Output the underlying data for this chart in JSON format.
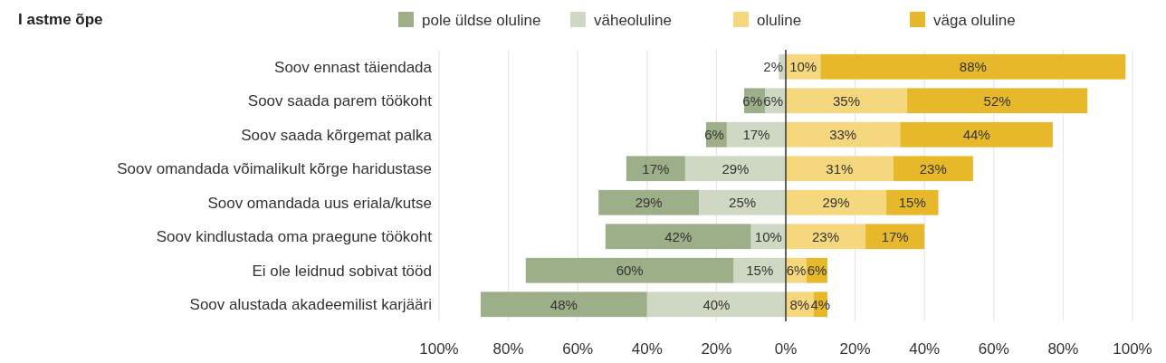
{
  "chart_data": {
    "type": "bar",
    "orientation": "horizontal",
    "title": "I astme õpe",
    "categories": [
      "Soov ennast täiendada",
      "Soov saada parem töökoht",
      "Soov saada kõrgemat palka",
      "Soov omandada võimalikult kõrge haridustase",
      "Soov omandada uus eriala/kutse",
      "Soov kindlustada oma praegune töökoht",
      "Ei ole leidnud sobivat tööd",
      "Soov alustada akadeemilist karjääri"
    ],
    "series": [
      {
        "name": "pole üldse oluline",
        "color": "#9caf88",
        "values": [
          null,
          6,
          6,
          17,
          29,
          42,
          60,
          48
        ],
        "base": [
          null,
          -12,
          -23,
          -46,
          -54,
          -52,
          -75,
          -88
        ],
        "value_labels": [
          null,
          "6%",
          "6%",
          "17%",
          "29%",
          "42%",
          "60%",
          "48%"
        ]
      },
      {
        "name": "väheoluline",
        "color": "#cfd8c3",
        "values": [
          2,
          6,
          17,
          29,
          25,
          10,
          15,
          40
        ],
        "base": [
          -2,
          -6,
          -17,
          -29,
          -25,
          -10,
          -15,
          -40
        ],
        "value_labels": [
          "2%",
          "6%",
          "17%",
          "29%",
          "25%",
          "10%",
          "15%",
          "40%"
        ]
      },
      {
        "name": "oluline",
        "color": "#f5d77e",
        "values": [
          10,
          35,
          33,
          31,
          29,
          23,
          6,
          8
        ],
        "base": [
          0,
          0,
          0,
          0,
          0,
          0,
          0,
          0
        ],
        "value_labels": [
          "10%",
          "35%",
          "33%",
          "31%",
          "29%",
          "23%",
          "6%",
          "8%"
        ]
      },
      {
        "name": "väga oluline",
        "color": "#e6b82a",
        "values": [
          88,
          52,
          44,
          23,
          15,
          17,
          6,
          4
        ],
        "base": [
          10,
          35,
          33,
          31,
          29,
          23,
          6,
          8
        ],
        "value_labels": [
          "88%",
          "52%",
          "44%",
          "23%",
          "15%",
          "17%",
          "6%",
          "4%"
        ]
      }
    ],
    "xlim": [
      -100,
      100
    ],
    "xticks": [
      {
        "value": -100,
        "label": "100%"
      },
      {
        "value": -80,
        "label": "80%"
      },
      {
        "value": -60,
        "label": "60%"
      },
      {
        "value": -40,
        "label": "40%"
      },
      {
        "value": -20,
        "label": "20%"
      },
      {
        "value": 0,
        "label": "0%"
      },
      {
        "value": 20,
        "label": "20%"
      },
      {
        "value": 40,
        "label": "40%"
      },
      {
        "value": 60,
        "label": "60%"
      },
      {
        "value": 80,
        "label": "80%"
      },
      {
        "value": 100,
        "label": "100%"
      }
    ],
    "grid": "x",
    "legend": "top"
  }
}
